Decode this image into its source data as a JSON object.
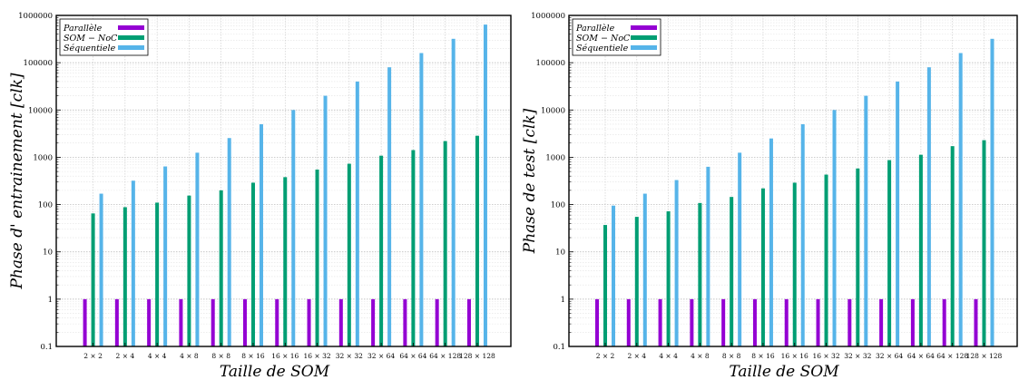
{
  "chart_data": [
    {
      "type": "bar",
      "yscale": "log",
      "ylim": [
        0.1,
        1000000
      ],
      "yticks": [
        "0.1",
        "1",
        "10",
        "100",
        "1000",
        "10000",
        "100000",
        "1000000"
      ],
      "grid": true,
      "legend_position": "top-left",
      "xlabel": "Taille de SOM",
      "ylabel": "Phase d' entrainement [clk]",
      "categories": [
        "2 × 2",
        "2 × 4",
        "4 × 4",
        "4 × 8",
        "8 × 8",
        "8 × 16",
        "16 × 16",
        "16 × 32",
        "32 × 32",
        "32 × 64",
        "64 × 64",
        "64 × 128",
        "128 × 128"
      ],
      "series": [
        {
          "name": "Parallèle",
          "color": "#9400d3",
          "values": [
            1,
            1,
            1,
            1,
            1,
            1,
            1,
            1,
            1,
            1,
            1,
            1,
            1
          ]
        },
        {
          "name": "SOM − NoC",
          "color": "#009e73",
          "values": [
            65,
            88,
            110,
            155,
            200,
            290,
            380,
            550,
            730,
            1080,
            1420,
            2200,
            2850
          ]
        },
        {
          "name": "Séquentiele",
          "color": "#56b4e9",
          "values": [
            170,
            320,
            640,
            1250,
            2550,
            5000,
            10000,
            20000,
            40000,
            80000,
            160000,
            320000,
            640000
          ]
        }
      ]
    },
    {
      "type": "bar",
      "yscale": "log",
      "ylim": [
        0.1,
        1000000
      ],
      "yticks": [
        "0.1",
        "1",
        "10",
        "100",
        "1000",
        "10000",
        "100000",
        "1000000"
      ],
      "grid": true,
      "legend_position": "top-left",
      "xlabel": "Taille de SOM",
      "ylabel": "Phase de test [clk]",
      "categories": [
        "2 × 2",
        "2 × 4",
        "4 × 4",
        "4 × 8",
        "8 × 8",
        "8 × 16",
        "16 × 16",
        "16 × 32",
        "32 × 32",
        "32 × 64",
        "64 × 64",
        "64 × 128",
        "128 × 128"
      ],
      "series": [
        {
          "name": "Parallèle",
          "color": "#9400d3",
          "values": [
            1,
            1,
            1,
            1,
            1,
            1,
            1,
            1,
            1,
            1,
            1,
            1,
            1
          ]
        },
        {
          "name": "SOM − NoC",
          "color": "#009e73",
          "values": [
            37,
            55,
            72,
            108,
            145,
            220,
            290,
            430,
            580,
            870,
            1130,
            1720,
            2300
          ]
        },
        {
          "name": "Séquentiele",
          "color": "#56b4e9",
          "values": [
            95,
            170,
            330,
            630,
            1250,
            2500,
            5000,
            10000,
            20000,
            40000,
            80000,
            160000,
            320000
          ]
        }
      ]
    }
  ]
}
